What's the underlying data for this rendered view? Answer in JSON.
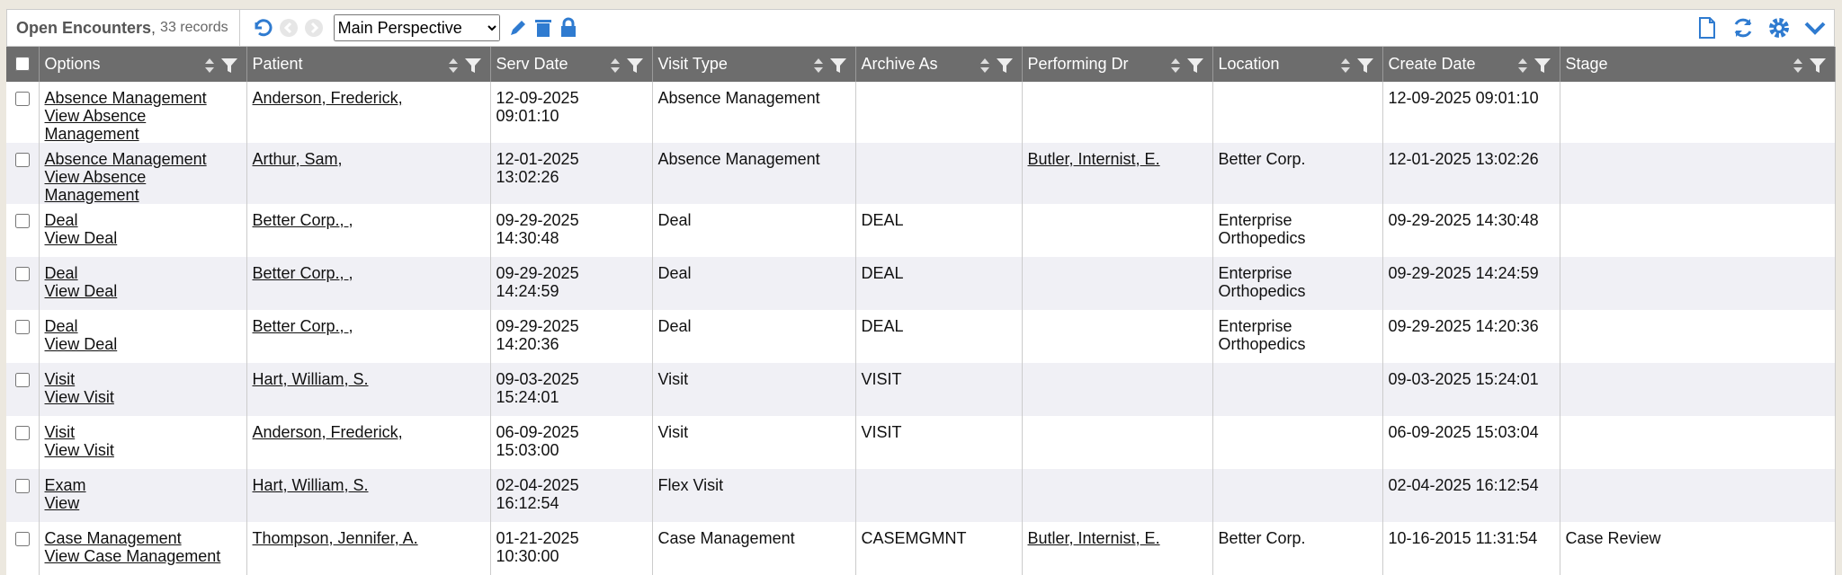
{
  "toolbar": {
    "title": "Open Encounters",
    "record_count": "33 records",
    "perspective": "Main Perspective"
  },
  "table": {
    "columns": [
      "Options",
      "Patient",
      "Serv Date",
      "Visit Type",
      "Archive As",
      "Performing Dr",
      "Location",
      "Create Date",
      "Stage"
    ],
    "rows": [
      [
        [
          "Absence Management",
          "View Absence Management"
        ],
        "Anderson, Frederick,",
        "12-09-2025 09:01:10",
        "Absence Management",
        null,
        null,
        null,
        "12-09-2025 09:01:10",
        null
      ],
      [
        [
          "Absence Management",
          "View Absence Management"
        ],
        "Arthur, Sam,",
        "12-01-2025 13:02:26",
        "Absence Management",
        null,
        "Butler, Internist, E.",
        "Better Corp.",
        "12-01-2025 13:02:26",
        null
      ],
      [
        [
          "Deal",
          "View Deal"
        ],
        "Better Corp., ,",
        "09-29-2025 14:30:48",
        "Deal",
        "DEAL",
        null,
        "Enterprise Orthopedics",
        "09-29-2025 14:30:48",
        null
      ],
      [
        [
          "Deal",
          "View Deal"
        ],
        "Better Corp., ,",
        "09-29-2025 14:24:59",
        "Deal",
        "DEAL",
        null,
        "Enterprise Orthopedics",
        "09-29-2025 14:24:59",
        null
      ],
      [
        [
          "Deal",
          "View Deal"
        ],
        "Better Corp., ,",
        "09-29-2025 14:20:36",
        "Deal",
        "DEAL",
        null,
        "Enterprise Orthopedics",
        "09-29-2025 14:20:36",
        null
      ],
      [
        [
          "Visit",
          "View Visit"
        ],
        "Hart, William, S.",
        "09-03-2025 15:24:01",
        "Visit",
        "VISIT",
        null,
        null,
        "09-03-2025 15:24:01",
        null
      ],
      [
        [
          "Visit",
          "View Visit"
        ],
        "Anderson, Frederick,",
        "06-09-2025 15:03:00",
        "Visit",
        "VISIT",
        null,
        null,
        "06-09-2025 15:03:04",
        null
      ],
      [
        [
          "Exam",
          "View"
        ],
        "Hart, William, S.",
        "02-04-2025 16:12:54",
        "Flex Visit",
        null,
        null,
        null,
        "02-04-2025 16:12:54",
        null
      ],
      [
        [
          "Case Management",
          "View Case Management"
        ],
        "Thompson, Jennifer, A.",
        "01-21-2025 10:30:00",
        "Case Management",
        "CASEMGMNT",
        "Butler, Internist, E.",
        "Better Corp.",
        "10-16-2015 11:31:54",
        "Case Review"
      ]
    ]
  }
}
